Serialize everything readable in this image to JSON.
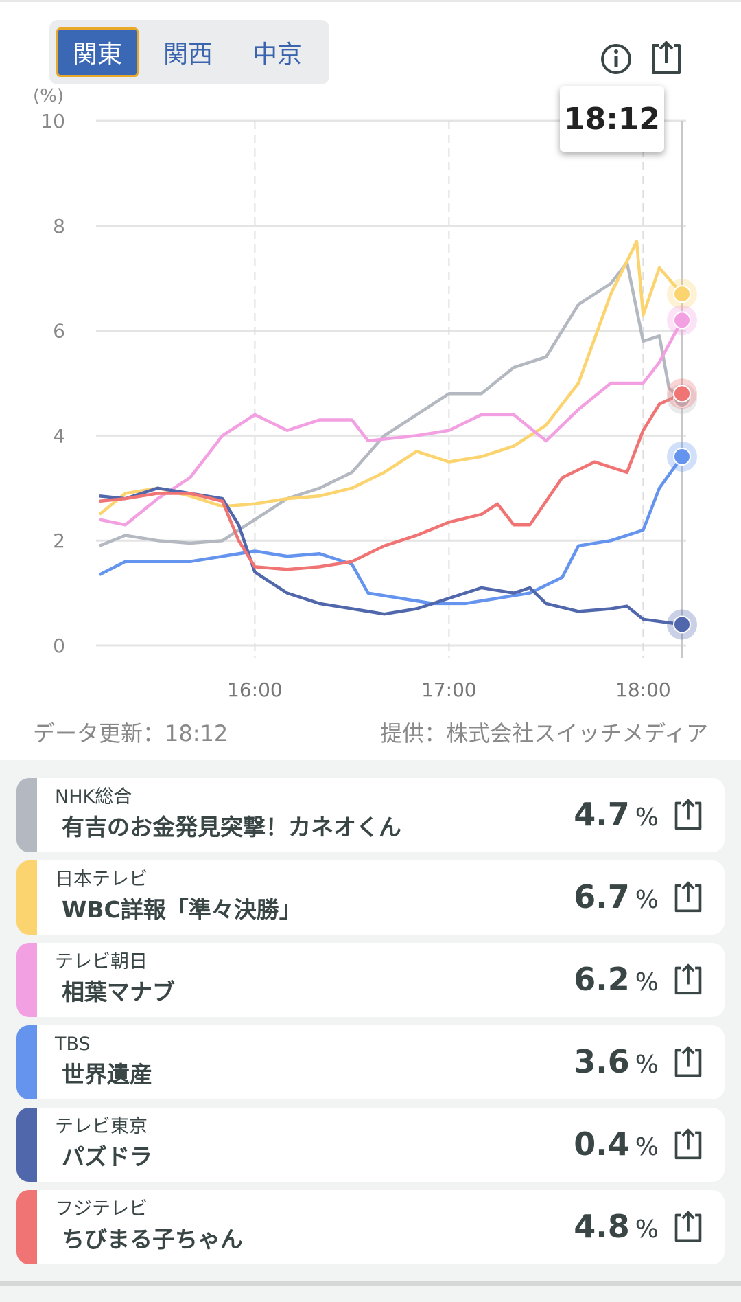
{
  "region_tabs": [
    {
      "label": "関東",
      "active": true
    },
    {
      "label": "関西",
      "active": false
    },
    {
      "label": "中京",
      "active": false
    }
  ],
  "icons": {
    "info": "info-icon",
    "share": "share-icon"
  },
  "tooltip_time": "18:12",
  "footer": {
    "updated": "データ更新：18:12",
    "provider": "提供：株式会社スイッチメディア"
  },
  "chart_data": {
    "type": "line",
    "ylabel": "(%)",
    "ylim": [
      0,
      10
    ],
    "yticks": [
      "0",
      "2",
      "4",
      "6",
      "8",
      "10"
    ],
    "xticks": [
      "16:00",
      "17:00",
      "18:00"
    ],
    "xrange_minutes_from_1512": [
      0,
      180
    ],
    "cursor_time": "18:12",
    "series": [
      {
        "name": "NHK総合",
        "color": "#b4b9c1",
        "points": [
          [
            0,
            1.9
          ],
          [
            8,
            2.1
          ],
          [
            18,
            2.0
          ],
          [
            28,
            1.95
          ],
          [
            38,
            2.0
          ],
          [
            48,
            2.4
          ],
          [
            58,
            2.8
          ],
          [
            68,
            3.0
          ],
          [
            78,
            3.3
          ],
          [
            88,
            4.0
          ],
          [
            98,
            4.4
          ],
          [
            108,
            4.8
          ],
          [
            118,
            4.8
          ],
          [
            128,
            5.3
          ],
          [
            138,
            5.5
          ],
          [
            148,
            6.5
          ],
          [
            158,
            6.9
          ],
          [
            163,
            7.3
          ],
          [
            168,
            5.8
          ],
          [
            173,
            5.9
          ],
          [
            176,
            4.9
          ],
          [
            180,
            4.7
          ]
        ]
      },
      {
        "name": "日本テレビ",
        "color": "#fcd46f",
        "points": [
          [
            0,
            2.5
          ],
          [
            8,
            2.9
          ],
          [
            18,
            3.0
          ],
          [
            28,
            2.85
          ],
          [
            38,
            2.65
          ],
          [
            48,
            2.7
          ],
          [
            58,
            2.8
          ],
          [
            68,
            2.85
          ],
          [
            78,
            3.0
          ],
          [
            88,
            3.3
          ],
          [
            98,
            3.7
          ],
          [
            108,
            3.5
          ],
          [
            118,
            3.6
          ],
          [
            128,
            3.8
          ],
          [
            138,
            4.2
          ],
          [
            148,
            5.0
          ],
          [
            158,
            6.7
          ],
          [
            166,
            7.7
          ],
          [
            168,
            6.3
          ],
          [
            173,
            7.2
          ],
          [
            180,
            6.7
          ]
        ]
      },
      {
        "name": "テレビ朝日",
        "color": "#f2a0e2",
        "points": [
          [
            0,
            2.4
          ],
          [
            8,
            2.3
          ],
          [
            18,
            2.8
          ],
          [
            28,
            3.2
          ],
          [
            38,
            4.0
          ],
          [
            48,
            4.4
          ],
          [
            58,
            4.1
          ],
          [
            68,
            4.3
          ],
          [
            78,
            4.3
          ],
          [
            83,
            3.9
          ],
          [
            98,
            4.0
          ],
          [
            108,
            4.1
          ],
          [
            118,
            4.4
          ],
          [
            128,
            4.4
          ],
          [
            138,
            3.9
          ],
          [
            148,
            4.5
          ],
          [
            158,
            5.0
          ],
          [
            168,
            5.0
          ],
          [
            173,
            5.4
          ],
          [
            180,
            6.2
          ]
        ]
      },
      {
        "name": "TBS",
        "color": "#6594ee",
        "points": [
          [
            0,
            1.35
          ],
          [
            8,
            1.6
          ],
          [
            18,
            1.6
          ],
          [
            28,
            1.6
          ],
          [
            38,
            1.7
          ],
          [
            48,
            1.8
          ],
          [
            58,
            1.7
          ],
          [
            68,
            1.75
          ],
          [
            78,
            1.55
          ],
          [
            83,
            1.0
          ],
          [
            93,
            0.9
          ],
          [
            103,
            0.8
          ],
          [
            113,
            0.8
          ],
          [
            123,
            0.9
          ],
          [
            133,
            1.0
          ],
          [
            143,
            1.3
          ],
          [
            148,
            1.9
          ],
          [
            158,
            2.0
          ],
          [
            163,
            2.1
          ],
          [
            168,
            2.2
          ],
          [
            173,
            3.0
          ],
          [
            180,
            3.6
          ]
        ]
      },
      {
        "name": "テレビ東京",
        "color": "#5167ac",
        "points": [
          [
            0,
            2.85
          ],
          [
            8,
            2.8
          ],
          [
            18,
            3.0
          ],
          [
            28,
            2.9
          ],
          [
            38,
            2.8
          ],
          [
            43,
            2.3
          ],
          [
            48,
            1.4
          ],
          [
            58,
            1.0
          ],
          [
            68,
            0.8
          ],
          [
            78,
            0.7
          ],
          [
            88,
            0.6
          ],
          [
            98,
            0.7
          ],
          [
            108,
            0.9
          ],
          [
            118,
            1.1
          ],
          [
            128,
            1.0
          ],
          [
            133,
            1.1
          ],
          [
            138,
            0.8
          ],
          [
            148,
            0.65
          ],
          [
            158,
            0.7
          ],
          [
            163,
            0.75
          ],
          [
            168,
            0.5
          ],
          [
            180,
            0.4
          ]
        ]
      },
      {
        "name": "フジテレビ",
        "color": "#f07474",
        "points": [
          [
            0,
            2.75
          ],
          [
            8,
            2.8
          ],
          [
            18,
            2.9
          ],
          [
            28,
            2.9
          ],
          [
            38,
            2.75
          ],
          [
            43,
            2.0
          ],
          [
            48,
            1.5
          ],
          [
            58,
            1.45
          ],
          [
            68,
            1.5
          ],
          [
            78,
            1.6
          ],
          [
            88,
            1.9
          ],
          [
            98,
            2.1
          ],
          [
            108,
            2.35
          ],
          [
            118,
            2.5
          ],
          [
            123,
            2.7
          ],
          [
            128,
            2.3
          ],
          [
            133,
            2.3
          ],
          [
            143,
            3.2
          ],
          [
            153,
            3.5
          ],
          [
            163,
            3.3
          ],
          [
            168,
            4.1
          ],
          [
            173,
            4.6
          ],
          [
            180,
            4.8
          ]
        ]
      }
    ]
  },
  "channels": [
    {
      "channel": "NHK総合",
      "program": "有吉のお金発見突撃！カネオくん",
      "value": "4.7",
      "unit": "%",
      "color": "#b4b9c1"
    },
    {
      "channel": "日本テレビ",
      "program": "WBC詳報「準々決勝」",
      "value": "6.7",
      "unit": "%",
      "color": "#fcd46f"
    },
    {
      "channel": "テレビ朝日",
      "program": "相葉マナブ",
      "value": "6.2",
      "unit": "%",
      "color": "#f2a0e2"
    },
    {
      "channel": "TBS",
      "program": "世界遺産",
      "value": "3.6",
      "unit": "%",
      "color": "#6594ee"
    },
    {
      "channel": "テレビ東京",
      "program": "パズドラ",
      "value": "0.4",
      "unit": "%",
      "color": "#5167ac"
    },
    {
      "channel": "フジテレビ",
      "program": "ちびまる子ちゃん",
      "value": "4.8",
      "unit": "%",
      "color": "#f07474"
    }
  ]
}
